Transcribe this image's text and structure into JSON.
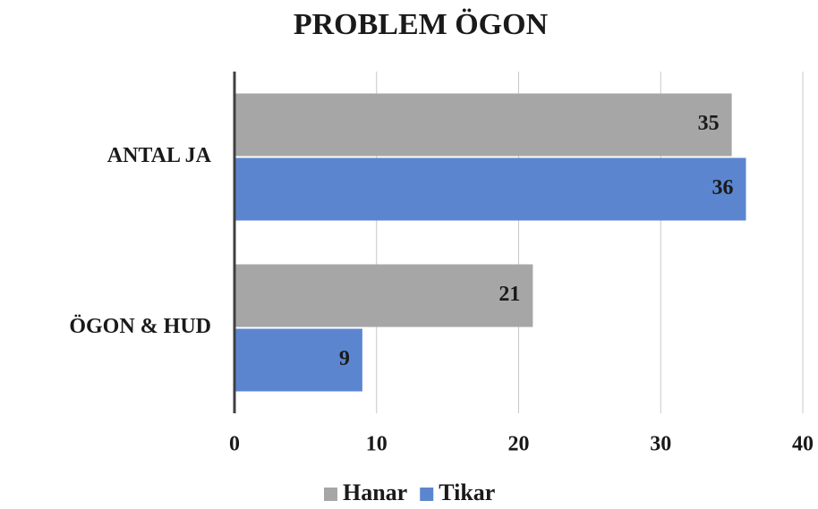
{
  "chart_data": {
    "type": "bar",
    "orientation": "horizontal",
    "title": "PROBLEM ÖGON",
    "categories": [
      "ANTAL JA",
      "ÖGON & HUD"
    ],
    "series": [
      {
        "name": "Hanar",
        "color": "#a6a6a6",
        "values": [
          35,
          21
        ]
      },
      {
        "name": "Tikar",
        "color": "#5b86cf",
        "values": [
          36,
          9
        ]
      }
    ],
    "xlim": [
      0,
      40
    ],
    "xticks": [
      0,
      10,
      20,
      30,
      40
    ],
    "grid": true,
    "legend": "bottom"
  }
}
